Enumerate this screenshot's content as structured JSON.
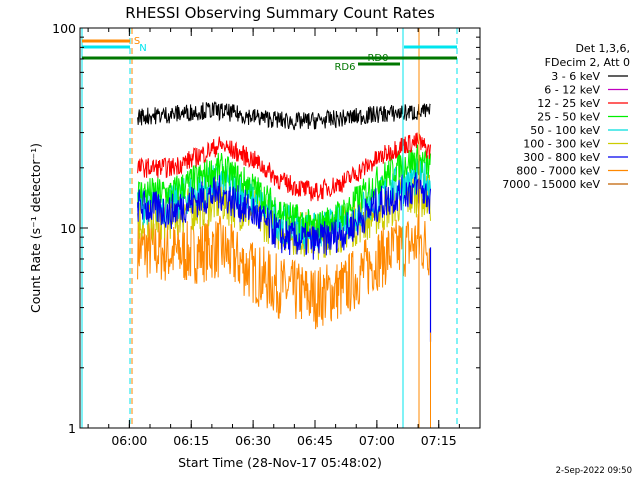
{
  "chart_data": {
    "type": "line",
    "title": "RHESSI Observing Summary Count Rates",
    "xlabel": "Start Time (28-Nov-17 05:48:02)",
    "ylabel": "Count Rate (s⁻¹ detector⁻¹)",
    "y_scale": "log",
    "ylim": [
      1,
      100
    ],
    "xlim": [
      "05:48:02",
      "07:25:00"
    ],
    "x_ticks": [
      "06:00",
      "06:15",
      "06:30",
      "06:45",
      "07:00",
      "07:15"
    ],
    "y_ticks": [
      "1",
      "10",
      "100"
    ],
    "legend_header": [
      "Det 1,3,6,",
      "FDecim 2, Att 0"
    ],
    "legend_position": "right",
    "series": [
      {
        "name": "3 - 6 keV",
        "color": "#000000",
        "points": [
          [
            "06:02",
            36
          ],
          [
            "06:10",
            37
          ],
          [
            "06:20",
            39
          ],
          [
            "06:30",
            36
          ],
          [
            "06:40",
            34
          ],
          [
            "06:50",
            35
          ],
          [
            "07:00",
            37
          ],
          [
            "07:10",
            38
          ],
          [
            "07:13",
            38
          ]
        ]
      },
      {
        "name": "6 - 12 keV",
        "color": "#c000c0",
        "points": []
      },
      {
        "name": "12 - 25 keV",
        "color": "#ff0000",
        "points": [
          [
            "06:02",
            20
          ],
          [
            "06:10",
            20
          ],
          [
            "06:15",
            22
          ],
          [
            "06:22",
            26
          ],
          [
            "06:30",
            22
          ],
          [
            "06:37",
            17
          ],
          [
            "06:45",
            15
          ],
          [
            "06:52",
            17
          ],
          [
            "07:00",
            22
          ],
          [
            "07:06",
            26
          ],
          [
            "07:10",
            27
          ],
          [
            "07:13",
            24
          ]
        ]
      },
      {
        "name": "25 - 50 keV",
        "color": "#00ee00",
        "points": [
          [
            "06:02",
            15
          ],
          [
            "06:10",
            15
          ],
          [
            "06:15",
            17
          ],
          [
            "06:22",
            20
          ],
          [
            "06:30",
            16
          ],
          [
            "06:37",
            12
          ],
          [
            "06:45",
            10
          ],
          [
            "06:52",
            12
          ],
          [
            "07:00",
            17
          ],
          [
            "07:06",
            21
          ],
          [
            "07:10",
            22
          ],
          [
            "07:13",
            20
          ]
        ]
      },
      {
        "name": "50 - 100 keV",
        "color": "#00dddd",
        "points": [
          [
            "06:02",
            13
          ],
          [
            "06:10",
            13
          ],
          [
            "06:15",
            15
          ],
          [
            "06:22",
            17
          ],
          [
            "06:30",
            14
          ],
          [
            "06:37",
            10.5
          ],
          [
            "06:45",
            9.5
          ],
          [
            "06:52",
            10.5
          ],
          [
            "07:00",
            14
          ],
          [
            "07:06",
            17
          ],
          [
            "07:10",
            18
          ],
          [
            "07:13",
            17
          ]
        ]
      },
      {
        "name": "100 - 300 keV",
        "color": "#cccc00",
        "points": [
          [
            "06:02",
            11
          ],
          [
            "06:10",
            11.5
          ],
          [
            "06:15",
            12.5
          ],
          [
            "06:22",
            14
          ],
          [
            "06:30",
            12
          ],
          [
            "06:37",
            10
          ],
          [
            "06:45",
            9
          ],
          [
            "06:52",
            10
          ],
          [
            "07:00",
            12
          ],
          [
            "07:06",
            14
          ],
          [
            "07:10",
            15
          ],
          [
            "07:13",
            14
          ]
        ]
      },
      {
        "name": "300 - 800 keV",
        "color": "#0000ee",
        "points": [
          [
            "06:02",
            13
          ],
          [
            "06:10",
            12
          ],
          [
            "06:15",
            13.5
          ],
          [
            "06:22",
            15
          ],
          [
            "06:30",
            12
          ],
          [
            "06:37",
            9
          ],
          [
            "06:45",
            8.5
          ],
          [
            "06:52",
            9.5
          ],
          [
            "07:00",
            13
          ],
          [
            "07:06",
            15
          ],
          [
            "07:10",
            16
          ],
          [
            "07:13",
            14
          ]
        ]
      },
      {
        "name": "800 - 7000 keV",
        "color": "#ff8800",
        "points": [
          [
            "06:02",
            8
          ],
          [
            "06:10",
            7.5
          ],
          [
            "06:15",
            7.5
          ],
          [
            "06:22",
            8
          ],
          [
            "06:30",
            6
          ],
          [
            "06:37",
            5
          ],
          [
            "06:45",
            4.5
          ],
          [
            "06:52",
            5
          ],
          [
            "07:00",
            7
          ],
          [
            "07:06",
            8
          ],
          [
            "07:10",
            8.5
          ],
          [
            "07:13",
            8
          ]
        ]
      },
      {
        "name": "7000 - 15000 keV",
        "color": "#c06000",
        "points": []
      }
    ],
    "flag_labels": [
      "S",
      "N",
      "RD0",
      "RD6"
    ],
    "date_stamp": "2-Sep-2022 09:50"
  }
}
